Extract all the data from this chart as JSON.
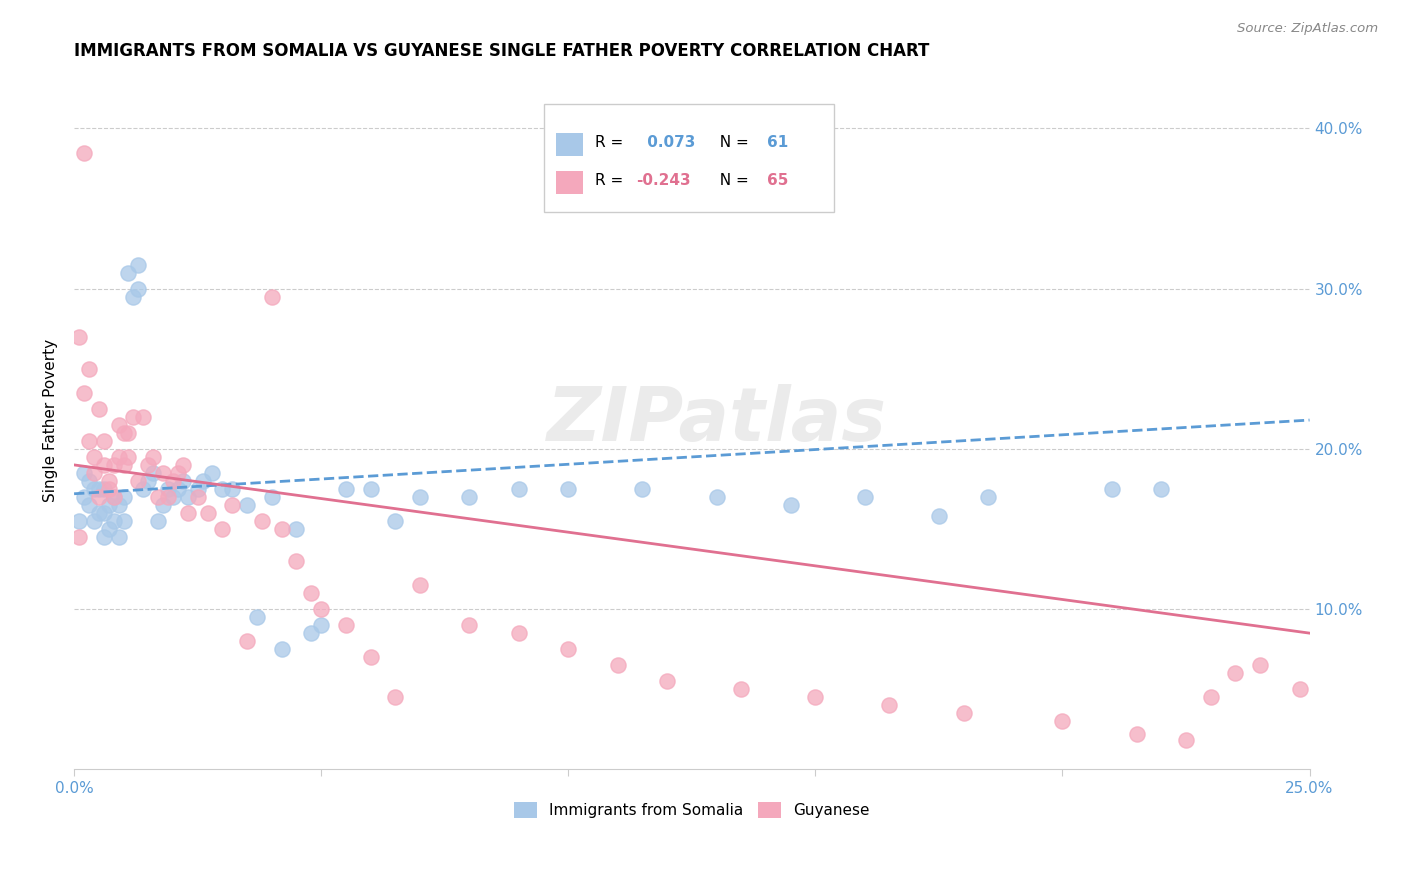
{
  "title": "IMMIGRANTS FROM SOMALIA VS GUYANESE SINGLE FATHER POVERTY CORRELATION CHART",
  "source": "Source: ZipAtlas.com",
  "ylabel": "Single Father Poverty",
  "ytick_vals": [
    0.1,
    0.2,
    0.3,
    0.4
  ],
  "ytick_labels": [
    "10.0%",
    "20.0%",
    "30.0%",
    "40.0%"
  ],
  "xlim": [
    0.0,
    0.25
  ],
  "ylim": [
    0.0,
    0.435
  ],
  "legend_label1": "Immigrants from Somalia",
  "legend_label2": "Guyanese",
  "color_somalia": "#a8c8e8",
  "color_guyanese": "#f4a8bc",
  "line_color_somalia": "#5b9bd5",
  "line_color_guyanese": "#e07090",
  "background_color": "#ffffff",
  "watermark": "ZIPatlas",
  "somalia_line_start_y": 0.172,
  "somalia_line_end_y": 0.218,
  "guyanese_line_start_y": 0.19,
  "guyanese_line_end_y": 0.085,
  "somalia_x": [
    0.001,
    0.002,
    0.002,
    0.003,
    0.003,
    0.004,
    0.004,
    0.005,
    0.005,
    0.006,
    0.006,
    0.006,
    0.007,
    0.007,
    0.008,
    0.008,
    0.009,
    0.009,
    0.01,
    0.01,
    0.011,
    0.012,
    0.013,
    0.013,
    0.014,
    0.015,
    0.016,
    0.017,
    0.018,
    0.019,
    0.02,
    0.021,
    0.022,
    0.023,
    0.025,
    0.026,
    0.028,
    0.03,
    0.032,
    0.035,
    0.037,
    0.04,
    0.042,
    0.045,
    0.048,
    0.05,
    0.055,
    0.06,
    0.065,
    0.07,
    0.08,
    0.09,
    0.1,
    0.115,
    0.13,
    0.145,
    0.16,
    0.175,
    0.185,
    0.21,
    0.22
  ],
  "somalia_y": [
    0.155,
    0.17,
    0.185,
    0.165,
    0.18,
    0.155,
    0.175,
    0.16,
    0.175,
    0.145,
    0.16,
    0.175,
    0.15,
    0.165,
    0.155,
    0.17,
    0.145,
    0.165,
    0.155,
    0.17,
    0.31,
    0.295,
    0.3,
    0.315,
    0.175,
    0.18,
    0.185,
    0.155,
    0.165,
    0.175,
    0.17,
    0.175,
    0.18,
    0.17,
    0.175,
    0.18,
    0.185,
    0.175,
    0.175,
    0.165,
    0.095,
    0.17,
    0.075,
    0.15,
    0.085,
    0.09,
    0.175,
    0.175,
    0.155,
    0.17,
    0.17,
    0.175,
    0.175,
    0.175,
    0.17,
    0.165,
    0.17,
    0.158,
    0.17,
    0.175,
    0.175
  ],
  "guyanese_x": [
    0.001,
    0.001,
    0.002,
    0.002,
    0.003,
    0.003,
    0.004,
    0.004,
    0.005,
    0.005,
    0.006,
    0.006,
    0.007,
    0.007,
    0.008,
    0.008,
    0.009,
    0.009,
    0.01,
    0.01,
    0.011,
    0.011,
    0.012,
    0.013,
    0.014,
    0.015,
    0.016,
    0.017,
    0.018,
    0.019,
    0.02,
    0.021,
    0.022,
    0.023,
    0.025,
    0.027,
    0.03,
    0.032,
    0.035,
    0.038,
    0.04,
    0.042,
    0.045,
    0.048,
    0.05,
    0.055,
    0.06,
    0.065,
    0.07,
    0.08,
    0.09,
    0.1,
    0.11,
    0.12,
    0.135,
    0.15,
    0.165,
    0.18,
    0.2,
    0.215,
    0.225,
    0.23,
    0.235,
    0.24,
    0.248
  ],
  "guyanese_y": [
    0.27,
    0.145,
    0.385,
    0.235,
    0.25,
    0.205,
    0.195,
    0.185,
    0.225,
    0.17,
    0.205,
    0.19,
    0.18,
    0.175,
    0.19,
    0.17,
    0.195,
    0.215,
    0.21,
    0.19,
    0.21,
    0.195,
    0.22,
    0.18,
    0.22,
    0.19,
    0.195,
    0.17,
    0.185,
    0.17,
    0.18,
    0.185,
    0.19,
    0.16,
    0.17,
    0.16,
    0.15,
    0.165,
    0.08,
    0.155,
    0.295,
    0.15,
    0.13,
    0.11,
    0.1,
    0.09,
    0.07,
    0.045,
    0.115,
    0.09,
    0.085,
    0.075,
    0.065,
    0.055,
    0.05,
    0.045,
    0.04,
    0.035,
    0.03,
    0.022,
    0.018,
    0.045,
    0.06,
    0.065,
    0.05
  ]
}
